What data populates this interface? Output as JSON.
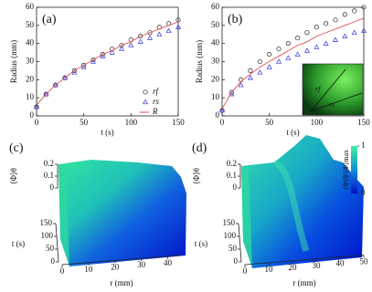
{
  "chart_data": [
    {
      "type": "line",
      "panel": "(a)",
      "xlabel": "t (s)",
      "ylabel": "Radius (mm)",
      "xlim": [
        0,
        150
      ],
      "xticks": [
        0,
        50,
        100,
        150
      ],
      "ylim": [
        0,
        60
      ],
      "yticks": [
        0,
        10,
        20,
        30,
        40,
        50,
        60
      ],
      "x": [
        0,
        10,
        20,
        30,
        40,
        50,
        60,
        70,
        80,
        90,
        100,
        110,
        120,
        130,
        140,
        150
      ],
      "series": [
        {
          "name": "rf",
          "color": "#222222",
          "marker": "o",
          "values": [
            5,
            12,
            17,
            21,
            25,
            28,
            31,
            34,
            37,
            39,
            42,
            44,
            46,
            49,
            51,
            53
          ]
        },
        {
          "name": "rs",
          "color": "#3333dd",
          "marker": "^",
          "values": [
            5,
            12,
            17,
            21,
            24,
            27,
            30,
            33,
            35,
            37,
            39,
            41,
            43,
            45,
            47,
            49
          ]
        },
        {
          "name": "R",
          "color": "#e05050",
          "marker": "-",
          "values": [
            6,
            12,
            17,
            21,
            25,
            28,
            31,
            34,
            36,
            39,
            41,
            44,
            46,
            48,
            50,
            52
          ]
        }
      ],
      "legend": "lower right"
    },
    {
      "type": "line",
      "panel": "(b)",
      "xlabel": "t (s)",
      "ylabel": "Radius (mm)",
      "xlim": [
        0,
        150
      ],
      "xticks": [
        0,
        50,
        100,
        150
      ],
      "ylim": [
        0,
        60
      ],
      "yticks": [
        0,
        10,
        20,
        30,
        40,
        50,
        60
      ],
      "x": [
        0,
        10,
        20,
        30,
        40,
        50,
        60,
        70,
        80,
        90,
        100,
        110,
        120,
        130,
        140,
        150
      ],
      "series": [
        {
          "name": "rf",
          "color": "#222222",
          "marker": "o",
          "values": [
            3,
            13,
            20,
            25,
            30,
            34,
            37,
            40,
            43,
            46,
            49,
            51,
            53,
            56,
            58,
            60
          ]
        },
        {
          "name": "rs",
          "color": "#3333dd",
          "marker": "^",
          "values": [
            3,
            12,
            17,
            21,
            24,
            27,
            30,
            32,
            34,
            36,
            38,
            40,
            42,
            44,
            46,
            47
          ]
        },
        {
          "name": "R",
          "color": "#e05050",
          "marker": "-",
          "values": [
            4,
            13,
            19,
            23,
            27,
            30,
            33,
            36,
            39,
            41,
            44,
            46,
            48,
            50,
            52,
            54
          ]
        }
      ]
    },
    {
      "type": "surface3d",
      "panel": "(c)",
      "zlabel": "⟨Φ⟩θ",
      "tlabel": "t (s)",
      "rlabel": "r (mm)",
      "rlim": [
        0,
        45
      ],
      "rticks": [
        0,
        10,
        20,
        30,
        40
      ],
      "tlim": [
        0,
        150
      ],
      "tticks": [
        0,
        50,
        100,
        150
      ],
      "zlim": [
        0,
        0.2
      ],
      "zticks": [
        0,
        0.1,
        0.2
      ]
    },
    {
      "type": "surface3d",
      "panel": "(d)",
      "zlabel": "⟨Φ⟩θ",
      "tlabel": "t (s)",
      "rlabel": "r (mm)",
      "rlim": [
        0,
        50
      ],
      "rticks": [
        0,
        10,
        20,
        30,
        40,
        50
      ],
      "tlim": [
        0,
        150
      ],
      "tticks": [
        0,
        50,
        100,
        150
      ],
      "zlim": [
        0,
        0.2
      ],
      "zticks": [
        0,
        0.1,
        0.2
      ],
      "colorbar": {
        "label": "⟨Φ⟩θ/⟨Φ⟩max",
        "ticks": [
          0,
          1
        ]
      }
    }
  ]
}
